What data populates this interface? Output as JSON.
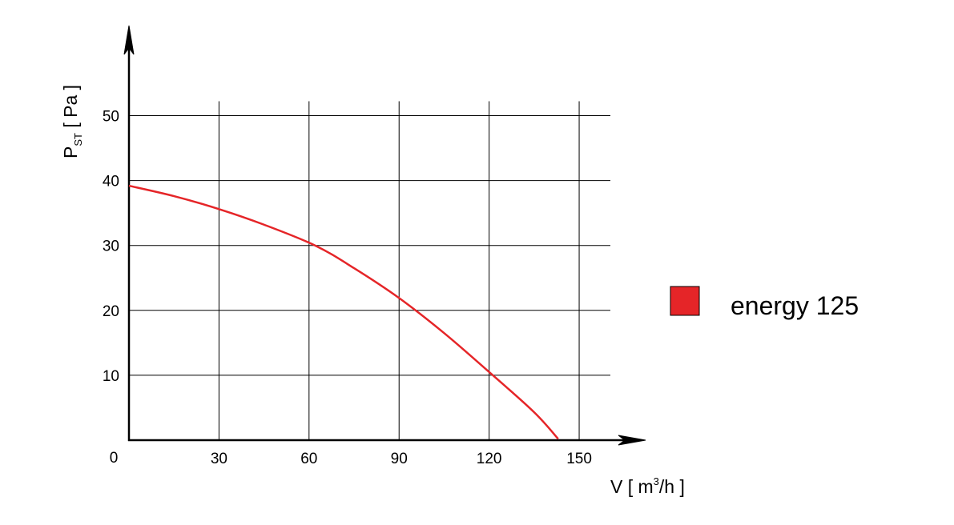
{
  "chart_data": {
    "type": "line",
    "title": "",
    "xlabel": {
      "main": "V [ m",
      "sup": "3",
      "tail": "/h ]"
    },
    "ylabel": {
      "main": "P",
      "sub": "ST",
      "tail": " [ Pa ]"
    },
    "origin_label": "0",
    "x_ticks": [
      30,
      60,
      90,
      120,
      150
    ],
    "y_ticks": [
      10,
      20,
      30,
      40,
      50
    ],
    "xlim": [
      0,
      160
    ],
    "ylim": [
      0,
      54
    ],
    "grid": true,
    "legend_position": "right",
    "series": [
      {
        "name": "energy  125",
        "color": "#e52528",
        "x": [
          0,
          15,
          30,
          45,
          62,
          75,
          90,
          105,
          120,
          135,
          143
        ],
        "y": [
          39.2,
          37.6,
          35.6,
          33.2,
          30,
          26.5,
          21.9,
          16.5,
          10.5,
          4.3,
          0.2
        ]
      }
    ]
  }
}
